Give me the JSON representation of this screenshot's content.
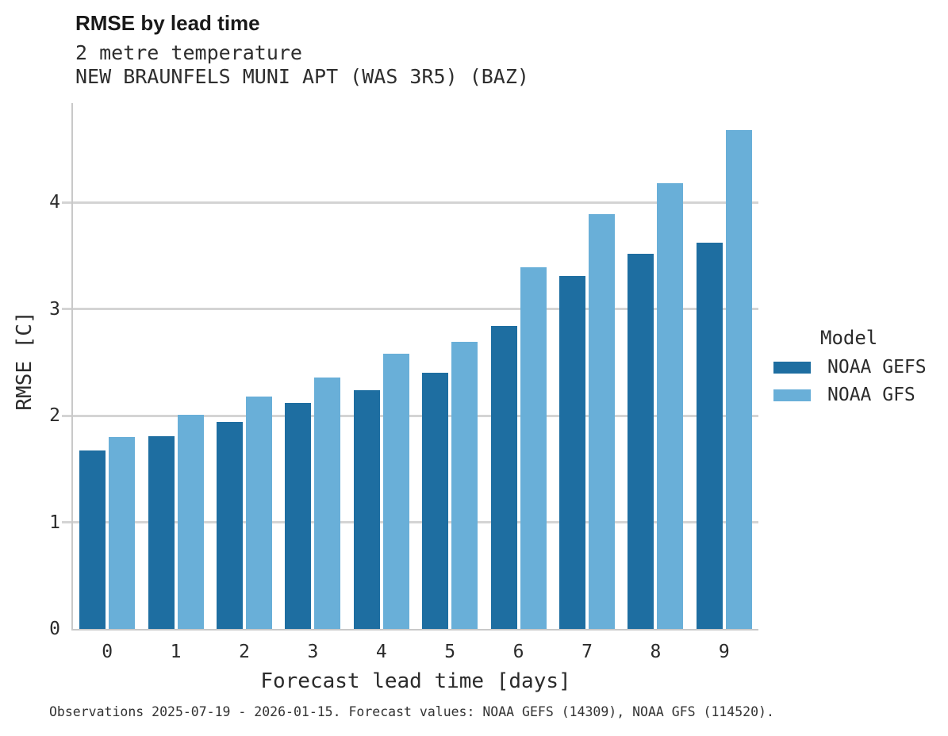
{
  "header": {
    "title": "RMSE by lead time",
    "subtitles": [
      "2 metre temperature",
      "NEW BRAUNFELS MUNI APT (WAS 3R5) (BAZ)"
    ]
  },
  "chart_data": {
    "type": "bar",
    "title": "RMSE by lead time",
    "parameter": "2 metre temperature",
    "station": "NEW BRAUNFELS MUNI APT (WAS 3R5) (BAZ)",
    "categories": [
      "0",
      "1",
      "2",
      "3",
      "4",
      "5",
      "6",
      "7",
      "8",
      "9"
    ],
    "series": [
      {
        "name": "NOAA GEFS",
        "color": "#1e6ea1",
        "values": [
          1.67,
          1.81,
          1.94,
          2.12,
          2.24,
          2.4,
          2.84,
          3.31,
          3.52,
          3.62
        ]
      },
      {
        "name": "NOAA GFS",
        "color": "#69afd8",
        "values": [
          1.8,
          2.01,
          2.18,
          2.36,
          2.58,
          2.69,
          3.39,
          3.89,
          4.18,
          4.68
        ]
      }
    ],
    "xlabel": "Forecast lead time [days]",
    "ylabel": "RMSE [C]",
    "ylim": [
      0,
      4.93
    ],
    "yticks": [
      0,
      1,
      2,
      3,
      4
    ],
    "grid": "horizontal",
    "legend_title": "Model",
    "legend_position": "right-center"
  },
  "footer": {
    "text": "Observations 2025-07-19 - 2026-01-15. Forecast values: NOAA GEFS (14309), NOAA GFS (114520)."
  },
  "colors": {
    "series_gefs": "#1e6ea1",
    "series_gfs": "#69afd8",
    "gridline": "#d4d4d4",
    "spine": "#c9c9c9",
    "text": "#2b2b2b",
    "title_text": "#191919",
    "footer_text": "#333333"
  }
}
